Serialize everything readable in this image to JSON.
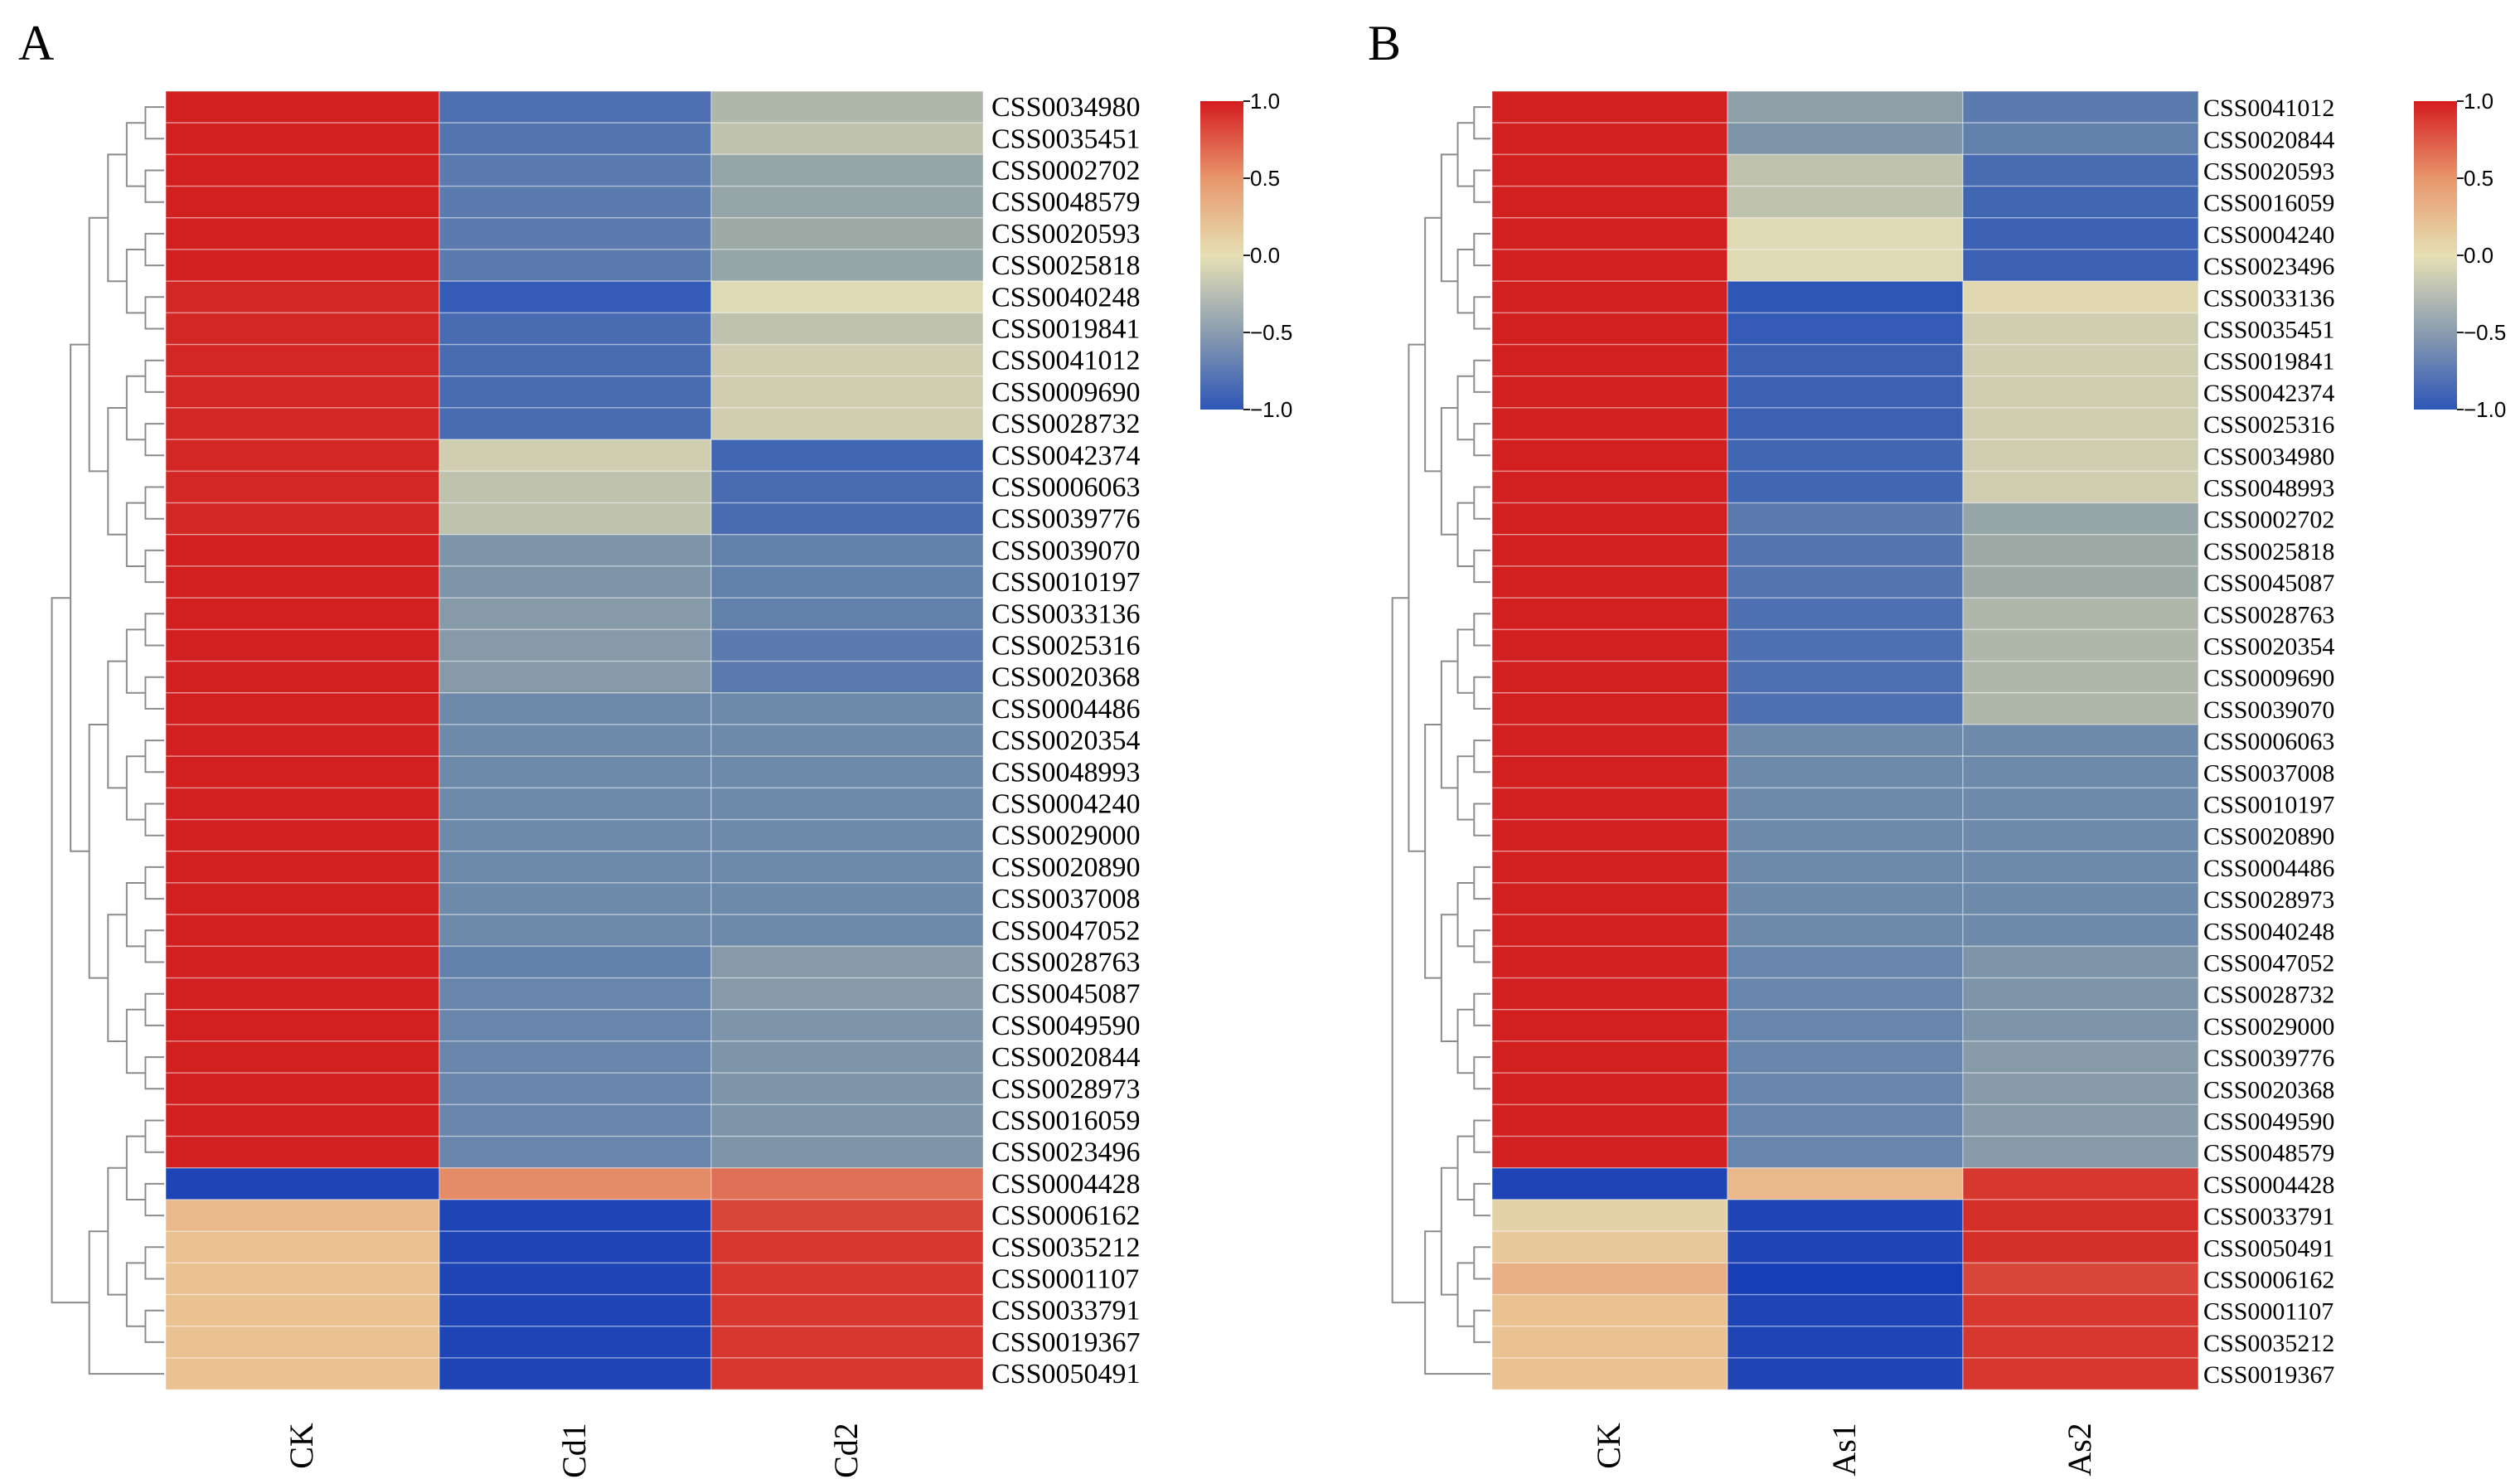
{
  "chart_data": [
    {
      "type": "heatmap",
      "panel_label": "A",
      "columns": [
        "CK",
        "Cd1",
        "Cd2"
      ],
      "rows": [
        "CSS0034980",
        "CSS0035451",
        "CSS0002702",
        "CSS0048579",
        "CSS0020593",
        "CSS0025818",
        "CSS0040248",
        "CSS0019841",
        "CSS0041012",
        "CSS0009690",
        "CSS0028732",
        "CSS0042374",
        "CSS0006063",
        "CSS0039776",
        "CSS0039070",
        "CSS0010197",
        "CSS0033136",
        "CSS0025316",
        "CSS0020368",
        "CSS0004486",
        "CSS0020354",
        "CSS0048993",
        "CSS0004240",
        "CSS0029000",
        "CSS0020890",
        "CSS0037008",
        "CSS0047052",
        "CSS0028763",
        "CSS0045087",
        "CSS0049590",
        "CSS0020844",
        "CSS0028973",
        "CSS0016059",
        "CSS0023496",
        "CSS0004428",
        "CSS0006162",
        "CSS0035212",
        "CSS0001107",
        "CSS0033791",
        "CSS0019367",
        "CSS0050491"
      ],
      "values": [
        [
          1.15,
          -0.75,
          -0.15
        ],
        [
          1.15,
          -0.7,
          -0.1
        ],
        [
          1.15,
          -0.65,
          -0.25
        ],
        [
          1.15,
          -0.65,
          -0.25
        ],
        [
          1.15,
          -0.65,
          -0.2
        ],
        [
          1.15,
          -0.65,
          -0.25
        ],
        [
          1.1,
          -0.95,
          0.0
        ],
        [
          1.1,
          -0.8,
          -0.1
        ],
        [
          1.1,
          -0.8,
          -0.05
        ],
        [
          1.1,
          -0.8,
          -0.05
        ],
        [
          1.1,
          -0.8,
          -0.05
        ],
        [
          1.1,
          -0.05,
          -0.85
        ],
        [
          1.1,
          -0.1,
          -0.8
        ],
        [
          1.1,
          -0.1,
          -0.8
        ],
        [
          1.15,
          -0.4,
          -0.6
        ],
        [
          1.15,
          -0.4,
          -0.6
        ],
        [
          1.15,
          -0.35,
          -0.6
        ],
        [
          1.15,
          -0.35,
          -0.65
        ],
        [
          1.15,
          -0.35,
          -0.65
        ],
        [
          1.15,
          -0.5,
          -0.5
        ],
        [
          1.15,
          -0.5,
          -0.5
        ],
        [
          1.15,
          -0.5,
          -0.5
        ],
        [
          1.15,
          -0.5,
          -0.5
        ],
        [
          1.15,
          -0.5,
          -0.5
        ],
        [
          1.15,
          -0.5,
          -0.5
        ],
        [
          1.15,
          -0.5,
          -0.5
        ],
        [
          1.15,
          -0.5,
          -0.5
        ],
        [
          1.15,
          -0.6,
          -0.35
        ],
        [
          1.15,
          -0.55,
          -0.35
        ],
        [
          1.15,
          -0.55,
          -0.4
        ],
        [
          1.15,
          -0.55,
          -0.4
        ],
        [
          1.15,
          -0.55,
          -0.4
        ],
        [
          1.15,
          -0.55,
          -0.4
        ],
        [
          1.15,
          -0.55,
          -0.4
        ],
        [
          -1.15,
          0.7,
          0.8
        ],
        [
          0.45,
          -1.15,
          0.95
        ],
        [
          0.4,
          -1.15,
          1.0
        ],
        [
          0.4,
          -1.15,
          1.0
        ],
        [
          0.4,
          -1.15,
          1.0
        ],
        [
          0.4,
          -1.15,
          1.0
        ],
        [
          0.4,
          -1.15,
          1.0
        ]
      ],
      "colorbar": {
        "ticks": [
          "1.0",
          "0.5",
          "0.0",
          "−0.5",
          "−1.0"
        ],
        "range": [
          -1,
          1
        ]
      }
    },
    {
      "type": "heatmap",
      "panel_label": "B",
      "columns": [
        "CK",
        "As1",
        "As2"
      ],
      "rows": [
        "CSS0041012",
        "CSS0020844",
        "CSS0020593",
        "CSS0016059",
        "CSS0004240",
        "CSS0023496",
        "CSS0033136",
        "CSS0035451",
        "CSS0019841",
        "CSS0042374",
        "CSS0025316",
        "CSS0034980",
        "CSS0048993",
        "CSS0002702",
        "CSS0025818",
        "CSS0045087",
        "CSS0028763",
        "CSS0020354",
        "CSS0009690",
        "CSS0039070",
        "CSS0006063",
        "CSS0037008",
        "CSS0010197",
        "CSS0020890",
        "CSS0004486",
        "CSS0028973",
        "CSS0040248",
        "CSS0047052",
        "CSS0028732",
        "CSS0029000",
        "CSS0039776",
        "CSS0020368",
        "CSS0049590",
        "CSS0048579",
        "CSS0004428",
        "CSS0033791",
        "CSS0050491",
        "CSS0006162",
        "CSS0001107",
        "CSS0035212",
        "CSS0019367"
      ],
      "values": [
        [
          1.15,
          -0.3,
          -0.65
        ],
        [
          1.15,
          -0.4,
          -0.6
        ],
        [
          1.15,
          -0.1,
          -0.8
        ],
        [
          1.15,
          -0.1,
          -0.85
        ],
        [
          1.15,
          0.0,
          -0.9
        ],
        [
          1.15,
          0.0,
          -0.9
        ],
        [
          1.15,
          -1.0,
          0.05
        ],
        [
          1.15,
          -0.95,
          -0.05
        ],
        [
          1.15,
          -0.9,
          -0.05
        ],
        [
          1.15,
          -0.9,
          -0.05
        ],
        [
          1.15,
          -0.9,
          -0.05
        ],
        [
          1.15,
          -0.85,
          -0.05
        ],
        [
          1.15,
          -0.85,
          -0.05
        ],
        [
          1.15,
          -0.65,
          -0.25
        ],
        [
          1.15,
          -0.7,
          -0.2
        ],
        [
          1.15,
          -0.7,
          -0.2
        ],
        [
          1.15,
          -0.75,
          -0.15
        ],
        [
          1.15,
          -0.75,
          -0.15
        ],
        [
          1.15,
          -0.75,
          -0.15
        ],
        [
          1.15,
          -0.75,
          -0.15
        ],
        [
          1.15,
          -0.5,
          -0.5
        ],
        [
          1.15,
          -0.5,
          -0.5
        ],
        [
          1.15,
          -0.5,
          -0.5
        ],
        [
          1.15,
          -0.5,
          -0.5
        ],
        [
          1.15,
          -0.5,
          -0.5
        ],
        [
          1.15,
          -0.5,
          -0.5
        ],
        [
          1.15,
          -0.5,
          -0.5
        ],
        [
          1.15,
          -0.55,
          -0.4
        ],
        [
          1.15,
          -0.55,
          -0.4
        ],
        [
          1.15,
          -0.55,
          -0.4
        ],
        [
          1.15,
          -0.55,
          -0.35
        ],
        [
          1.15,
          -0.55,
          -0.35
        ],
        [
          1.15,
          -0.55,
          -0.35
        ],
        [
          1.15,
          -0.55,
          -0.35
        ],
        [
          -1.15,
          0.45,
          1.0
        ],
        [
          0.15,
          -1.15,
          1.05
        ],
        [
          0.3,
          -1.15,
          1.05
        ],
        [
          0.5,
          -1.2,
          0.95
        ],
        [
          0.4,
          -1.15,
          1.0
        ],
        [
          0.4,
          -1.15,
          1.0
        ],
        [
          0.4,
          -1.15,
          1.0
        ]
      ],
      "colorbar": {
        "ticks": [
          "1.0",
          "0.5",
          "0.0",
          "−0.5",
          "−1.0"
        ],
        "range": [
          -1,
          1
        ]
      }
    }
  ]
}
